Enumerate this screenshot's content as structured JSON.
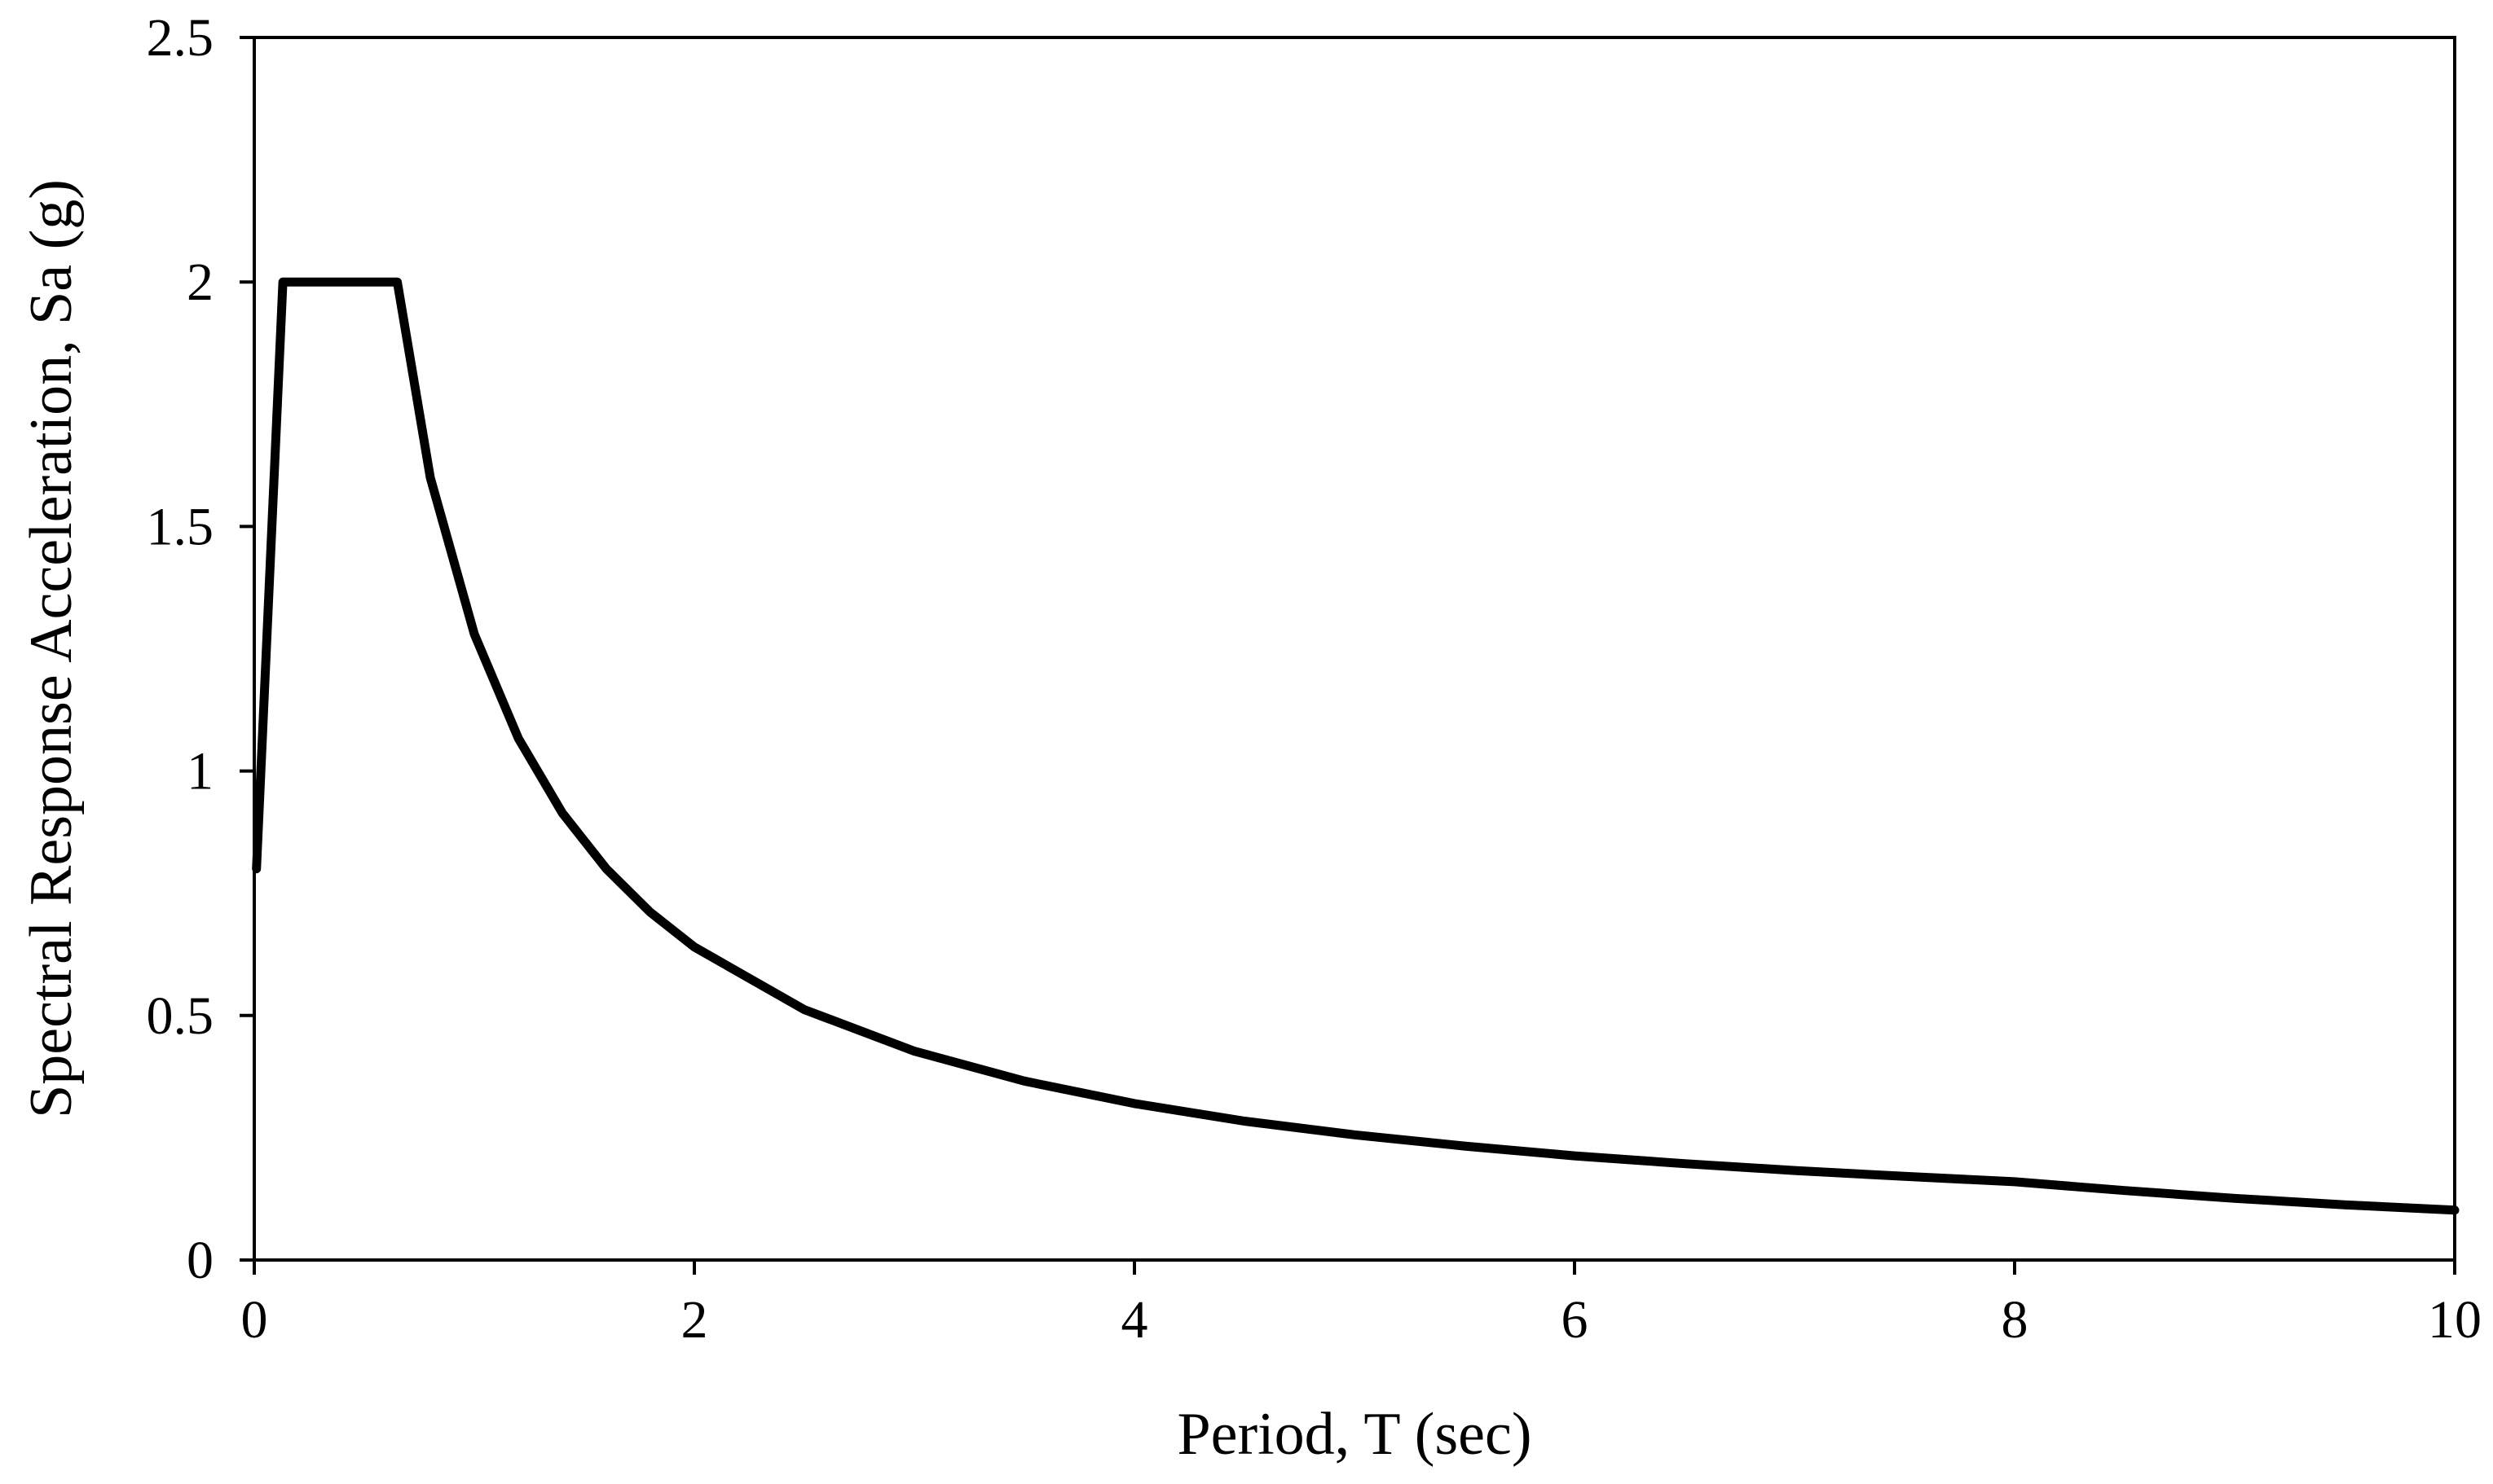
{
  "chart_data": {
    "type": "line",
    "title": "",
    "xlabel": "Period, T (sec)",
    "ylabel": "Spectral Response Acceleration, Sa (g)",
    "xlim": [
      0,
      10
    ],
    "ylim": [
      0,
      2.5
    ],
    "x_ticks": [
      "0",
      "2",
      "4",
      "6",
      "8",
      "10"
    ],
    "y_ticks": [
      "0",
      "0.5",
      "1",
      "1.5",
      "2",
      "2.5"
    ],
    "grid": false,
    "legend": "none",
    "line_color": "#000000",
    "series": [
      {
        "x": [
          0.01,
          0.13,
          0.65,
          0.8,
          1.0,
          1.2,
          1.4,
          1.6,
          1.8,
          2.0,
          2.5,
          3.0,
          3.5,
          4.0,
          4.5,
          5.0,
          5.5,
          6.0,
          6.5,
          7.0,
          7.5,
          8.0,
          8.5,
          9.0,
          9.5,
          10.0
        ],
        "y": [
          0.8,
          2.0,
          2.0,
          1.6,
          1.28,
          1.067,
          0.914,
          0.8,
          0.711,
          0.64,
          0.512,
          0.427,
          0.366,
          0.32,
          0.284,
          0.256,
          0.233,
          0.213,
          0.197,
          0.183,
          0.171,
          0.16,
          0.142,
          0.126,
          0.113,
          0.102
        ]
      }
    ]
  }
}
